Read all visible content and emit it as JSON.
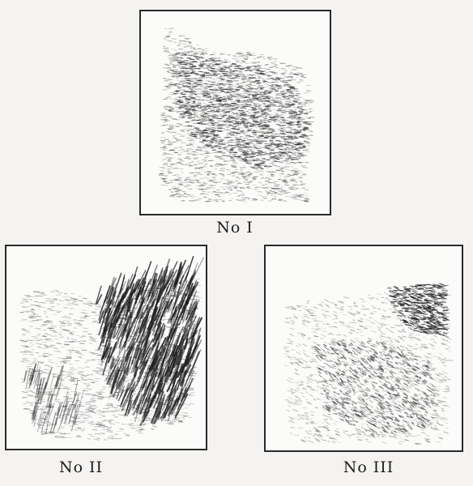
{
  "figures": [
    {
      "id": "fig-1",
      "caption": "No I"
    },
    {
      "id": "fig-2",
      "caption": "No II"
    },
    {
      "id": "fig-3",
      "caption": "No III"
    }
  ],
  "colors": {
    "ink": "#1c1c1c",
    "paper": "#f4f3f1",
    "plate": "#fbfbfa"
  }
}
